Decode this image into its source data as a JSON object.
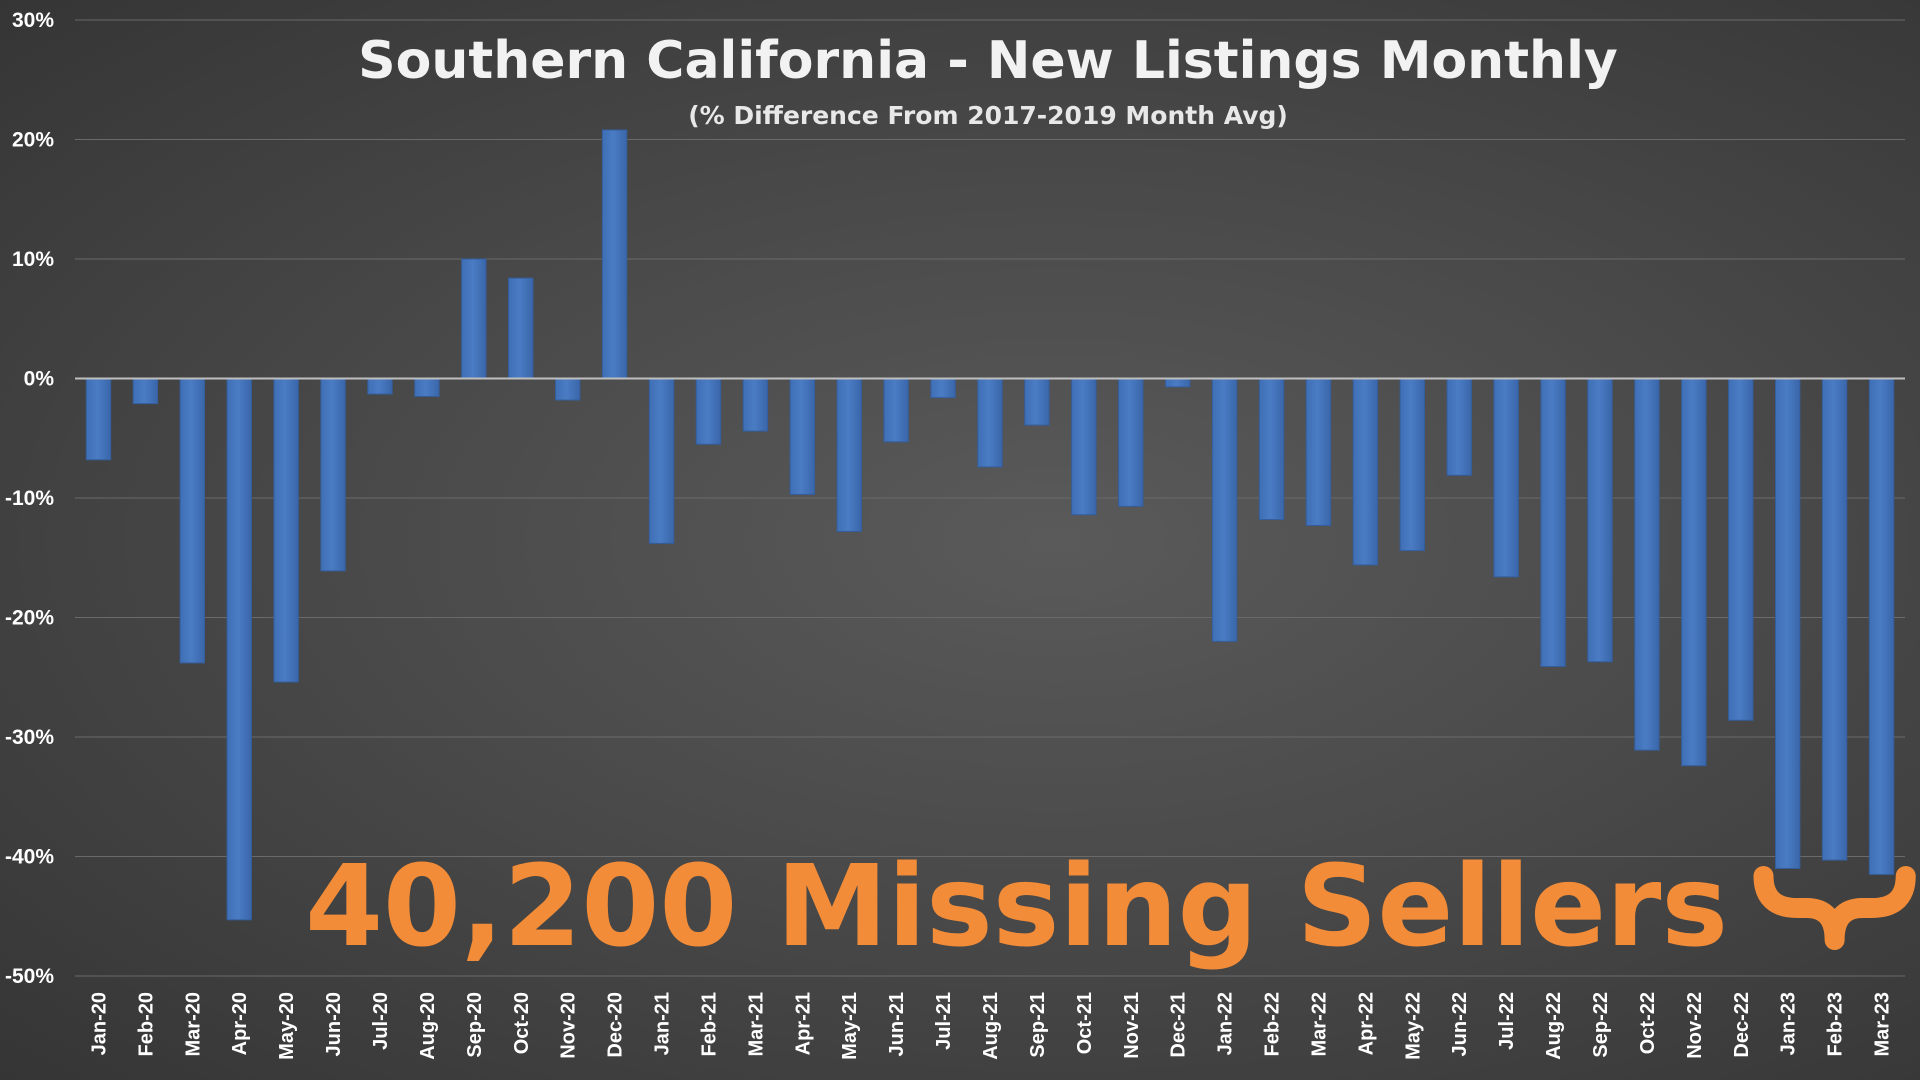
{
  "chart_data": {
    "type": "bar",
    "title": "Southern California - New Listings Monthly",
    "subtitle": "(% Difference From 2017-2019 Month Avg)",
    "xlabel": "",
    "ylabel": "",
    "ylim": [
      -50,
      30
    ],
    "yticks": [
      30,
      20,
      10,
      0,
      -10,
      -20,
      -30,
      -40,
      -50
    ],
    "ytick_labels": [
      "30%",
      "20%",
      "10%",
      "0%",
      "-10%",
      "-20%",
      "-30%",
      "-40%",
      "-50%"
    ],
    "grid": true,
    "bar_color": "#4a7cc4",
    "categories": [
      "Jan-20",
      "Feb-20",
      "Mar-20",
      "Apr-20",
      "May-20",
      "Jun-20",
      "Jul-20",
      "Aug-20",
      "Sep-20",
      "Oct-20",
      "Nov-20",
      "Dec-20",
      "Jan-21",
      "Feb-21",
      "Mar-21",
      "Apr-21",
      "May-21",
      "Jun-21",
      "Jul-21",
      "Aug-21",
      "Sep-21",
      "Oct-21",
      "Nov-21",
      "Dec-21",
      "Jan-22",
      "Feb-22",
      "Mar-22",
      "Apr-22",
      "May-22",
      "Jun-22",
      "Jul-22",
      "Aug-22",
      "Sep-22",
      "Oct-22",
      "Nov-22",
      "Dec-22",
      "Jan-23",
      "Feb-23",
      "Mar-23"
    ],
    "values": [
      -6.8,
      -2.1,
      -23.8,
      -45.3,
      -25.4,
      -16.1,
      -1.3,
      -1.5,
      10.0,
      8.4,
      -1.8,
      20.8,
      -13.8,
      -5.5,
      -4.4,
      -9.7,
      -12.8,
      -5.3,
      -1.6,
      -7.4,
      -3.9,
      -11.4,
      -10.7,
      -0.7,
      -22.0,
      -11.8,
      -12.3,
      -15.6,
      -14.4,
      -8.1,
      -16.6,
      -24.1,
      -23.7,
      -31.1,
      -32.4,
      -28.6,
      -41.0,
      -40.3,
      -41.5
    ],
    "annotation": {
      "text": "40,200 Missing Sellers",
      "color": "#f28c38",
      "brace_over": [
        "Jan-23",
        "Feb-23",
        "Mar-23"
      ]
    }
  }
}
